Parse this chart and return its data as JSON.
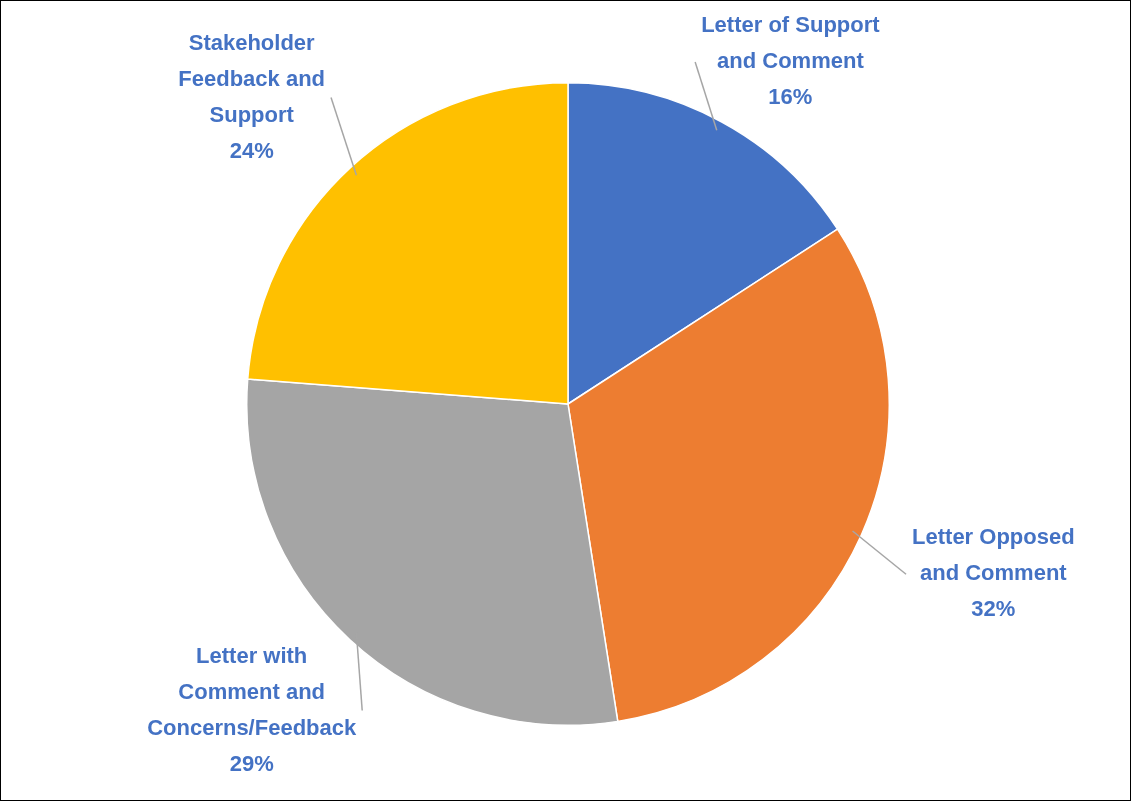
{
  "chart_data": {
    "type": "pie",
    "categories": [
      "Letter of Support and Comment",
      "Letter Opposed and Comment",
      "Letter with Comment and Concerns/Feedback",
      "Stakeholder Feedback and Support"
    ],
    "values": [
      16,
      32,
      29,
      24
    ],
    "colors": [
      "#4472c4",
      "#ed7d31",
      "#a5a5a5",
      "#ffc000"
    ],
    "value_labels": [
      "16%",
      "32%",
      "29%",
      "24%"
    ],
    "legend": false
  }
}
